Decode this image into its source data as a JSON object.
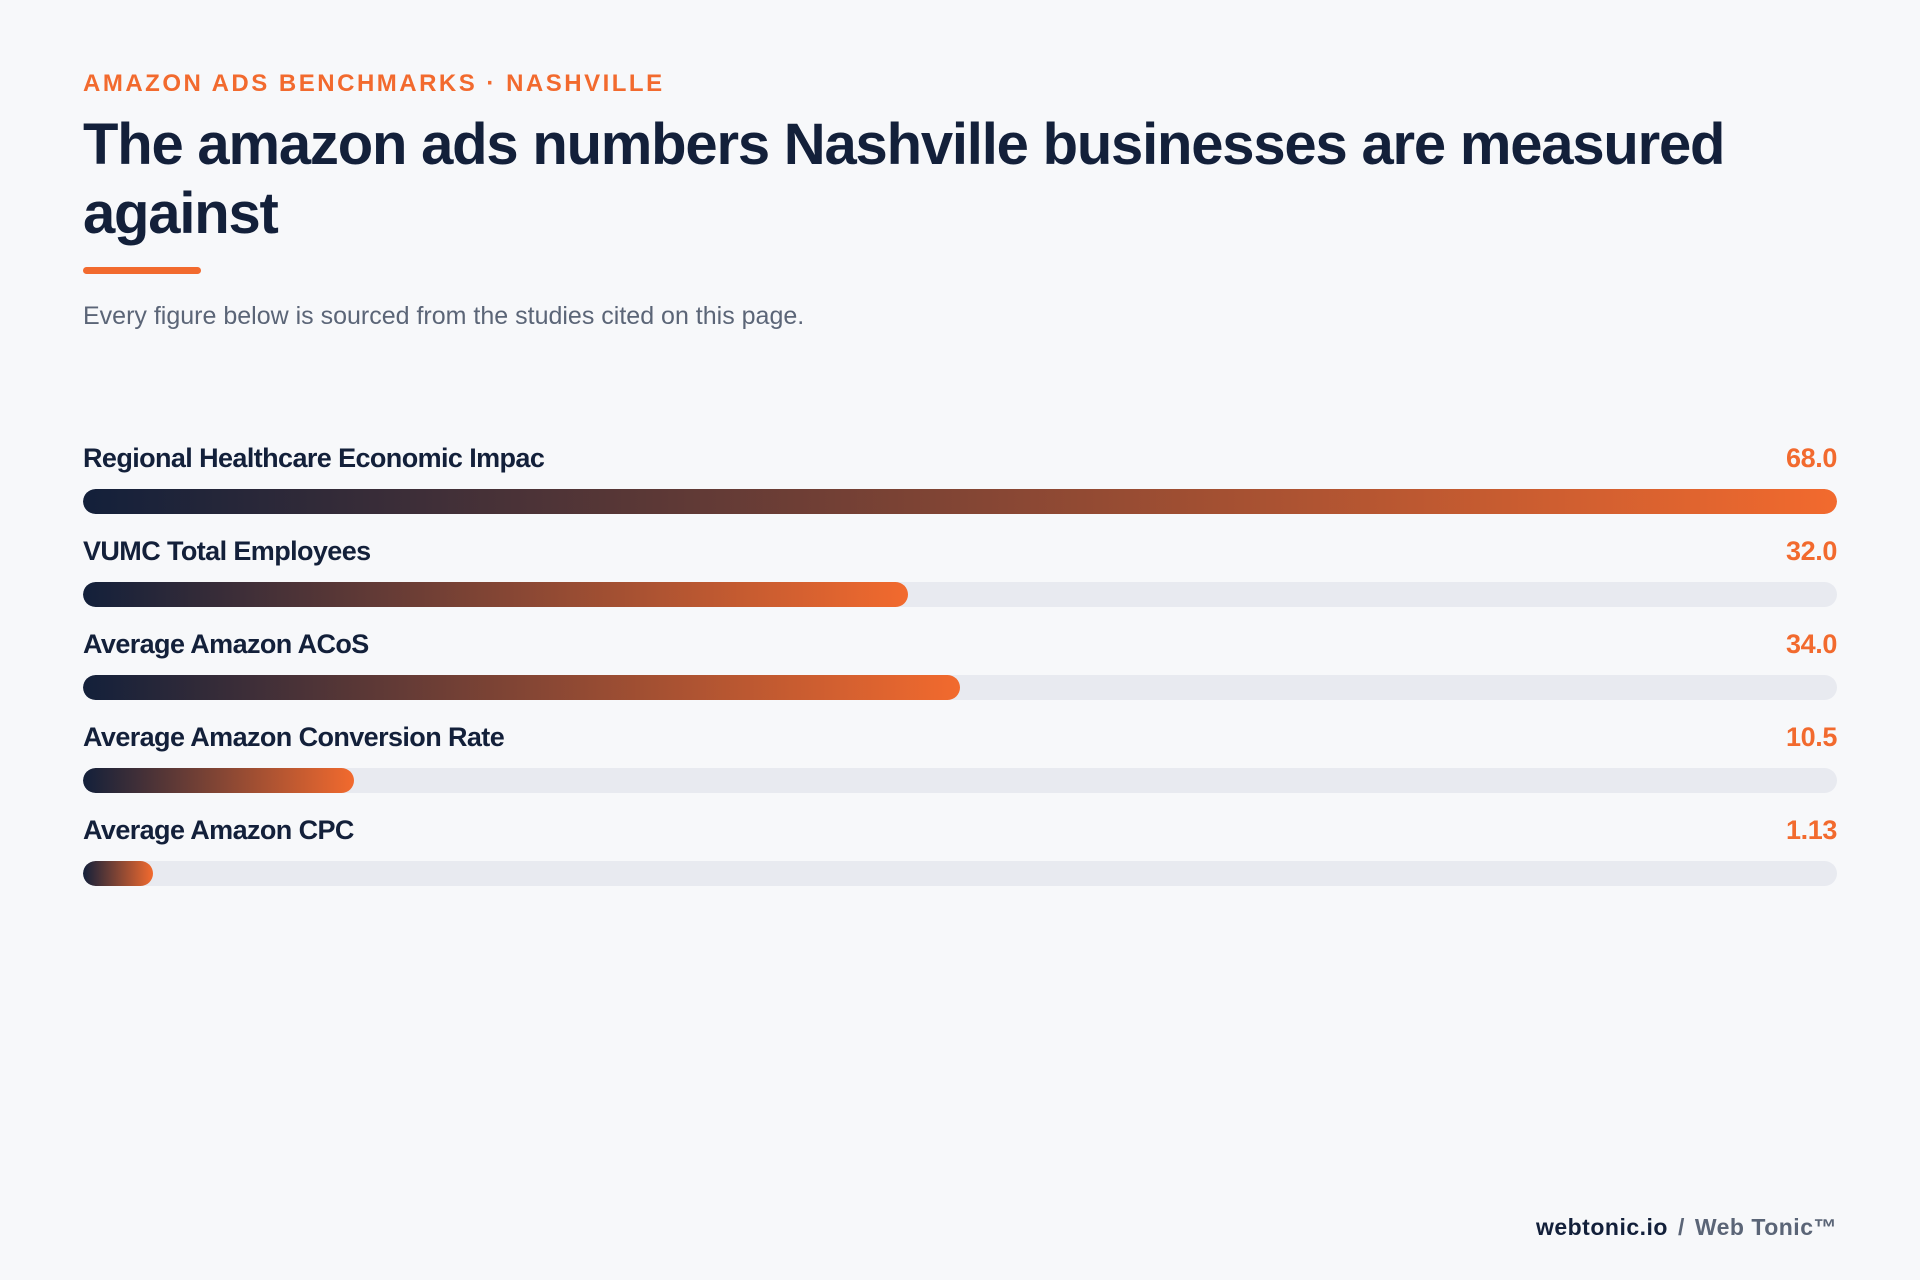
{
  "header": {
    "eyebrow": "AMAZON ADS BENCHMARKS · NASHVILLE",
    "title": "The amazon ads numbers Nashville businesses are measured against",
    "subtitle": "Every figure below is sourced from the studies cited on this page."
  },
  "colors": {
    "accent": "#f26a2e",
    "navy": "#13203a",
    "track": "#e8eaf0",
    "background": "#f7f8fa"
  },
  "chart_data": {
    "type": "bar",
    "orientation": "horizontal",
    "categories": [
      "Regional Healthcare Economic Impac",
      "VUMC Total Employees",
      "Average Amazon ACoS",
      "Average Amazon Conversion Rate",
      "Average Amazon CPC"
    ],
    "values": [
      68.0,
      32.0,
      34.0,
      10.5,
      1.13
    ],
    "value_labels": [
      "68.0",
      "32.0",
      "34.0",
      "10.5",
      "1.13"
    ],
    "xlim": [
      0,
      68.0
    ],
    "grid": false,
    "legend": "none"
  },
  "footer": {
    "domain": "webtonic.io",
    "separator": "/",
    "brand": "Web Tonic™"
  }
}
